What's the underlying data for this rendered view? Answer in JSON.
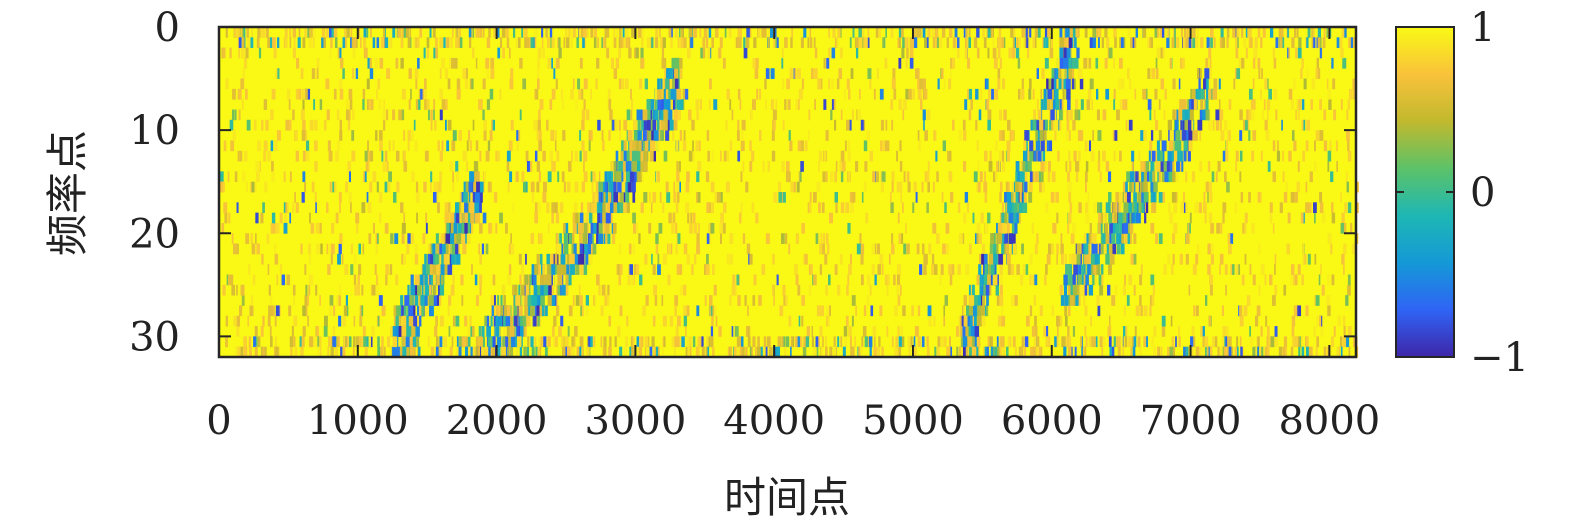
{
  "chart_data": {
    "type": "heatmap",
    "title": "",
    "xlabel": "时间点",
    "ylabel": "频率点",
    "xlim": [
      0,
      8192
    ],
    "ylim": [
      0,
      32
    ],
    "y_reversed": true,
    "x_ticks": [
      0,
      1000,
      2000,
      3000,
      4000,
      5000,
      6000,
      7000,
      8000
    ],
    "x_tick_labels": [
      "0",
      "1000",
      "2000",
      "3000",
      "4000",
      "5000",
      "6000",
      "7000",
      "8000"
    ],
    "y_ticks": [
      0,
      10,
      20,
      30
    ],
    "y_tick_labels": [
      "0",
      "10",
      "20",
      "30"
    ],
    "colorbar": {
      "range": [
        -1,
        1
      ],
      "ticks": [
        -1,
        0,
        1
      ],
      "tick_labels": [
        "−1",
        "0",
        "1"
      ],
      "colormap": "parula",
      "colors": [
        "#3e26a8",
        "#2f64f5",
        "#1599d6",
        "#1eb7b4",
        "#5cc268",
        "#c1b92e",
        "#f9c23b",
        "#f9f915"
      ]
    },
    "background_value": 1,
    "frequency_points": 32,
    "time_points": 8192,
    "high_variance_tracks": [
      {
        "t_start": 1250,
        "t_end": 1850,
        "f_start": 31,
        "f_end": 16
      },
      {
        "t_start": 1850,
        "t_end": 2800,
        "f_start": 32,
        "f_end": 18
      },
      {
        "t_start": 2750,
        "t_end": 3300,
        "f_start": 18,
        "f_end": 5
      },
      {
        "t_start": 5350,
        "t_end": 6150,
        "f_start": 31,
        "f_end": 2
      },
      {
        "t_start": 6100,
        "t_end": 7150,
        "f_start": 26,
        "f_end": 6
      }
    ],
    "vertical_streak_times": [
      2300,
      2620,
      3290,
      5620,
      6120,
      7130
    ],
    "grid": false,
    "legend": "none"
  }
}
